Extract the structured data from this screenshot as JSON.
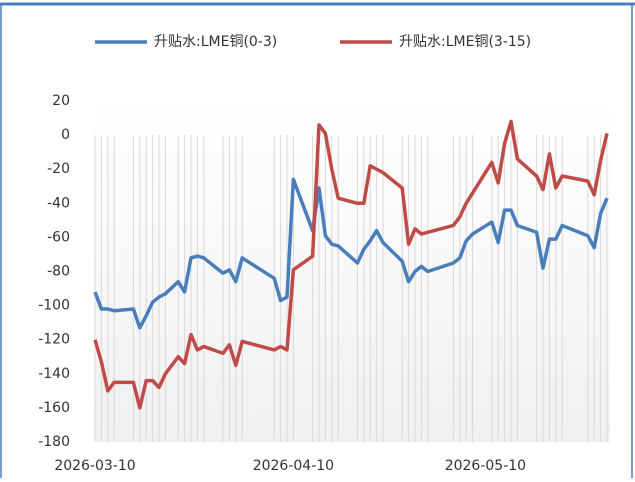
{
  "chart_data": {
    "type": "line",
    "x": [
      "2026-03-10",
      "2026-03-11",
      "2026-03-12",
      "2026-03-13",
      "2026-03-16",
      "2026-03-17",
      "2026-03-18",
      "2026-03-19",
      "2026-03-20",
      "2026-03-21",
      "2026-03-23",
      "2026-03-24",
      "2026-03-25",
      "2026-03-26",
      "2026-03-27",
      "2026-03-30",
      "2026-03-31",
      "2026-04-01",
      "2026-04-02",
      "2026-04-07",
      "2026-04-08",
      "2026-04-09",
      "2026-04-10",
      "2026-04-13",
      "2026-04-14",
      "2026-04-15",
      "2026-04-16",
      "2026-04-17",
      "2026-04-20",
      "2026-04-21",
      "2026-04-22",
      "2026-04-23",
      "2026-04-24",
      "2026-04-27",
      "2026-04-28",
      "2026-04-29",
      "2026-04-30",
      "2026-05-01",
      "2026-05-05",
      "2026-05-06",
      "2026-05-07",
      "2026-05-08",
      "2026-05-11",
      "2026-05-12",
      "2026-05-13",
      "2026-05-14",
      "2026-05-15",
      "2026-05-18",
      "2026-05-19",
      "2026-05-20",
      "2026-05-21",
      "2026-05-22",
      "2026-05-26",
      "2026-05-27",
      "2026-05-28",
      "2026-05-29"
    ],
    "series": [
      {
        "name": "升贴水:LME铜(0-3)",
        "color": "#4a7ebb",
        "values": [
          -92,
          -102,
          -102,
          -103,
          -102,
          -113,
          -106,
          -98,
          -95,
          -93,
          -86,
          -92,
          -72,
          -71,
          -72,
          -81,
          -79,
          -86,
          -72,
          -84,
          -97,
          -95,
          -26,
          -56,
          -31,
          -59,
          -64,
          -65,
          -75,
          -67,
          -62,
          -56,
          -63,
          -74,
          -86,
          -80,
          -77,
          -80,
          -75,
          -72,
          -62,
          -58,
          -51,
          -63,
          -44,
          -44,
          -53,
          -57,
          -78,
          -61,
          -61,
          -53,
          -59,
          -66,
          -46,
          -37
        ]
      },
      {
        "name": "升贴水:LME铜(3-15)",
        "color": "#be4b48",
        "values": [
          -120,
          -133,
          -150,
          -145,
          -145,
          -160,
          -144,
          -144,
          -148,
          -140,
          -130,
          -134,
          -117,
          -126,
          -124,
          -128,
          -123,
          -135,
          -121,
          -126,
          -124,
          -126,
          -79,
          -71,
          6,
          1,
          -20,
          -37,
          -40,
          -40,
          -18,
          -20,
          -22,
          -31,
          -64,
          -55,
          -58,
          -57,
          -53,
          -48,
          -40,
          -34,
          -16,
          -28,
          -5,
          8,
          -14,
          -24,
          -32,
          -11,
          -31,
          -24,
          -27,
          -35,
          -15,
          1
        ]
      }
    ],
    "xlim": [
      "2026-03-10",
      "2026-05-29"
    ],
    "xticks": [
      "2026-03-10",
      "2026-04-10",
      "2026-05-10"
    ],
    "ylim": [
      -180,
      20
    ],
    "yticks": [
      -180,
      -160,
      -140,
      -120,
      -100,
      -80,
      -60,
      -40,
      -20,
      0,
      20
    ],
    "grid": true
  }
}
